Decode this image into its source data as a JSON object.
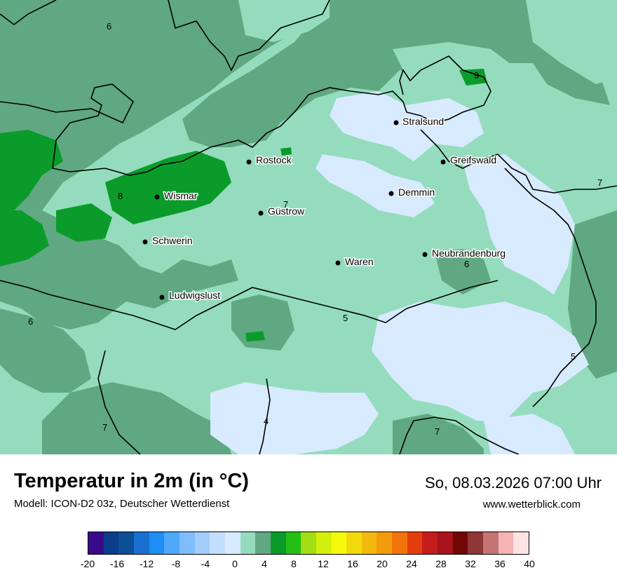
{
  "map": {
    "cities": [
      {
        "name": "Stralsund"
      },
      {
        "name": "Rostock"
      },
      {
        "name": "Greifswald"
      },
      {
        "name": "Wismar"
      },
      {
        "name": "Demmin"
      },
      {
        "name": "Güstrow"
      },
      {
        "name": "Schwerin"
      },
      {
        "name": "Neubrandenburg"
      },
      {
        "name": "Waren"
      },
      {
        "name": "Ludwigslust"
      }
    ],
    "isolines": [
      "6",
      "9",
      "8",
      "7",
      "7",
      "6",
      "6",
      "5",
      "5",
      "7",
      "4",
      "7"
    ],
    "colors": {
      "deep": "#5fa882",
      "mid": "#94dcbd",
      "light": "#d8eafe",
      "warm": "#0a9b2a"
    }
  },
  "footer": {
    "title": "Temperatur in 2m (in °C)",
    "model": "Modell: ICON-D2 03z, Deutscher Wetterdienst",
    "datetime": "So, 08.03.2026 07:00 Uhr",
    "website": "www.wetterblick.com"
  },
  "legend": {
    "colors": [
      "#3a0a8c",
      "#0b3d8a",
      "#0b4f96",
      "#1a6fd0",
      "#1f8ef5",
      "#4fa8fa",
      "#7ebdfb",
      "#a3cdfc",
      "#c4defd",
      "#d8eafe",
      "#94dcbd",
      "#5fa882",
      "#0a9b2a",
      "#24bf16",
      "#a3de14",
      "#d3f00d",
      "#f5fa0a",
      "#f2d90c",
      "#f2ba0c",
      "#f29c0c",
      "#f2730c",
      "#e63d0c",
      "#c41c1c",
      "#a8131c",
      "#700808",
      "#8f3636",
      "#c47474",
      "#f5b3b3",
      "#fde3e3"
    ],
    "ticks": [
      "-20",
      "-16",
      "-12",
      "-8",
      "-4",
      "0",
      "4",
      "8",
      "12",
      "16",
      "20",
      "24",
      "28",
      "32",
      "36",
      "40"
    ]
  }
}
